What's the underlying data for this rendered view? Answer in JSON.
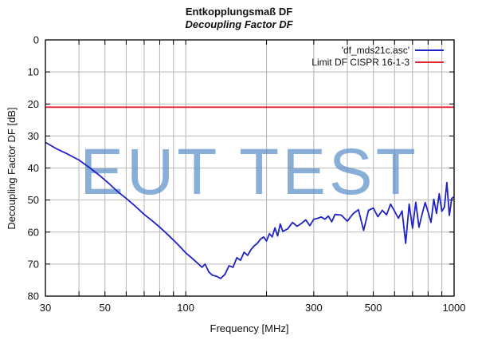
{
  "chart_data": {
    "type": "line",
    "title": "Entkopplungsmaß DF",
    "subtitle": "Decoupling Factor DF",
    "xlabel": "Frequency [MHz]",
    "ylabel": "Decoupling Factor DF [dB]",
    "xscale": "log",
    "xlim": [
      30,
      1000
    ],
    "ylim": [
      0,
      80
    ],
    "yinverted": true,
    "grid": true,
    "legend_position": "top-right",
    "x_ticks": [
      {
        "value": 30,
        "label": "30"
      },
      {
        "value": 50,
        "label": "50"
      },
      {
        "value": 100,
        "label": "100"
      },
      {
        "value": 300,
        "label": "300"
      },
      {
        "value": 500,
        "label": "500"
      },
      {
        "value": 1000,
        "label": "1000"
      }
    ],
    "y_ticks": [
      {
        "value": 0,
        "label": "0"
      },
      {
        "value": 10,
        "label": "10"
      },
      {
        "value": 20,
        "label": "20"
      },
      {
        "value": 30,
        "label": "30"
      },
      {
        "value": 40,
        "label": "40"
      },
      {
        "value": 50,
        "label": "50"
      },
      {
        "value": 60,
        "label": "60"
      },
      {
        "value": 70,
        "label": "70"
      },
      {
        "value": 80,
        "label": "80"
      }
    ],
    "watermark": "EUT TEST",
    "series": [
      {
        "name": "'df_mds21c.asc'",
        "color": "#1f22c4",
        "x": [
          30,
          33,
          36,
          40,
          44,
          48,
          52,
          56,
          60,
          65,
          70,
          75,
          80,
          85,
          90,
          95,
          100,
          105,
          110,
          115,
          118,
          122,
          126,
          130,
          135,
          140,
          145,
          150,
          155,
          160,
          165,
          170,
          175,
          180,
          185,
          190,
          195,
          200,
          205,
          210,
          215,
          220,
          225,
          230,
          240,
          250,
          260,
          270,
          280,
          290,
          300,
          310,
          320,
          330,
          340,
          350,
          360,
          380,
          400,
          420,
          440,
          460,
          480,
          500,
          520,
          540,
          560,
          580,
          600,
          620,
          640,
          660,
          680,
          700,
          720,
          740,
          760,
          780,
          800,
          820,
          840,
          860,
          880,
          900,
          920,
          940,
          960,
          980,
          1000
        ],
        "y": [
          32,
          34,
          35.5,
          37.5,
          40,
          42.5,
          45,
          47.5,
          49.5,
          52,
          54.5,
          56.5,
          58.5,
          60.5,
          62.5,
          64.5,
          66.5,
          68,
          69.5,
          71,
          70,
          72.5,
          73.5,
          73.8,
          74.5,
          73.2,
          70.5,
          71,
          68,
          68.8,
          66.3,
          67.3,
          65.5,
          64.3,
          63.5,
          62.2,
          61.5,
          62.8,
          60.5,
          61.5,
          58.7,
          61.2,
          57.5,
          59.8,
          59,
          57,
          58.2,
          57.3,
          56.2,
          58,
          56,
          55.7,
          55.3,
          56,
          55,
          56.8,
          54.5,
          54.7,
          56.6,
          54.3,
          53,
          59.5,
          53.2,
          52.5,
          55.2,
          53.2,
          54.6,
          51.3,
          53.5,
          55.7,
          53.4,
          63.5,
          51.3,
          58.8,
          50.7,
          58.5,
          54.3,
          50.8,
          53.8,
          57,
          49.8,
          54.2,
          48,
          53.5,
          52.2,
          44.5,
          54.8,
          49.5,
          49
        ]
      },
      {
        "name": "Limit DF CISPR 16-1-3",
        "color": "#e8232a",
        "x": [
          30,
          1000
        ],
        "y": [
          21,
          21
        ]
      }
    ]
  }
}
